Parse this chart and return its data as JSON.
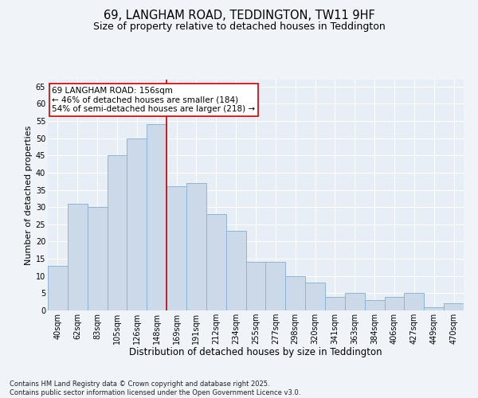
{
  "title": "69, LANGHAM ROAD, TEDDINGTON, TW11 9HF",
  "subtitle": "Size of property relative to detached houses in Teddington",
  "xlabel": "Distribution of detached houses by size in Teddington",
  "ylabel": "Number of detached properties",
  "footnote": "Contains HM Land Registry data © Crown copyright and database right 2025.\nContains public sector information licensed under the Open Government Licence v3.0.",
  "categories": [
    "40sqm",
    "62sqm",
    "83sqm",
    "105sqm",
    "126sqm",
    "148sqm",
    "169sqm",
    "191sqm",
    "212sqm",
    "234sqm",
    "255sqm",
    "277sqm",
    "298sqm",
    "320sqm",
    "341sqm",
    "363sqm",
    "384sqm",
    "406sqm",
    "427sqm",
    "449sqm",
    "470sqm"
  ],
  "values": [
    13,
    31,
    30,
    45,
    50,
    54,
    36,
    37,
    28,
    23,
    14,
    14,
    10,
    8,
    4,
    5,
    3,
    4,
    5,
    1,
    2
  ],
  "bar_color": "#ccd9e8",
  "bar_edge_color": "#8fb4d4",
  "bar_linewidth": 0.7,
  "vline_x": 6.0,
  "vline_color": "#cc0000",
  "annotation_line1": "69 LANGHAM ROAD: 156sqm",
  "annotation_line2": "← 46% of detached houses are smaller (184)",
  "annotation_line3": "54% of semi-detached houses are larger (218) →",
  "annotation_box_color": "#ffffff",
  "annotation_box_edge": "#cc0000",
  "ylim": [
    0,
    67
  ],
  "yticks": [
    0,
    5,
    10,
    15,
    20,
    25,
    30,
    35,
    40,
    45,
    50,
    55,
    60,
    65
  ],
  "background_color": "#f0f4f8",
  "plot_background": "#e8eef5",
  "grid_color": "#ffffff",
  "title_fontsize": 10.5,
  "subtitle_fontsize": 9,
  "tick_fontsize": 7,
  "xlabel_fontsize": 8.5,
  "ylabel_fontsize": 8,
  "annotation_fontsize": 7.5,
  "footnote_fontsize": 6
}
